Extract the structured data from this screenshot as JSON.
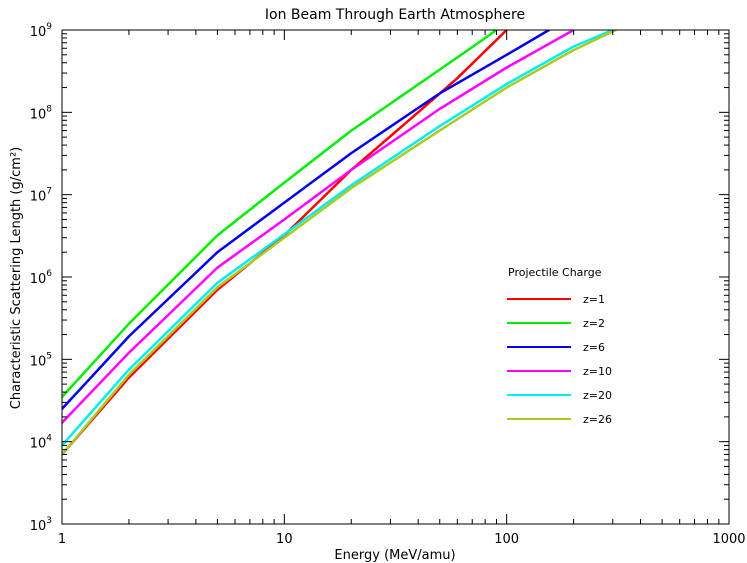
{
  "chart_data": {
    "type": "line",
    "title": "Ion Beam Through Earth Atmosphere",
    "xlabel": "Energy (MeV/amu)",
    "ylabel": "Characteristic Scattering Length (g/cm²)",
    "xscale": "log",
    "yscale": "log",
    "xlim": [
      1,
      1000
    ],
    "ylim": [
      1000,
      1000000000
    ],
    "x_ticks": [
      {
        "value": 1,
        "label": "1"
      },
      {
        "value": 10,
        "label": "10"
      },
      {
        "value": 100,
        "label": "100"
      },
      {
        "value": 1000,
        "label": "1000"
      }
    ],
    "y_ticks": [
      {
        "value": 1000,
        "base": "10",
        "exp": "3"
      },
      {
        "value": 10000,
        "base": "10",
        "exp": "4"
      },
      {
        "value": 100000,
        "base": "10",
        "exp": "5"
      },
      {
        "value": 1000000,
        "base": "10",
        "exp": "6"
      },
      {
        "value": 10000000,
        "base": "10",
        "exp": "7"
      },
      {
        "value": 100000000,
        "base": "10",
        "exp": "8"
      },
      {
        "value": 1000000000,
        "base": "10",
        "exp": "9"
      }
    ],
    "grid": false,
    "legend": {
      "title": "Projectile Charge",
      "position": "right"
    },
    "series": [
      {
        "name": "z=1",
        "color": "#ff0000",
        "x": [
          1,
          2,
          5,
          10,
          20,
          40,
          60,
          100
        ],
        "y": [
          7000,
          60000,
          700000,
          3200000,
          20000000,
          100000000,
          260000000,
          1000000000
        ]
      },
      {
        "name": "z=2",
        "color": "#00ee00",
        "x": [
          1,
          2,
          5,
          10,
          20,
          50,
          70,
          90
        ],
        "y": [
          35000,
          270000,
          3200000,
          14000000,
          60000000,
          330000000,
          620000000,
          1000000000
        ]
      },
      {
        "name": "z=6",
        "color": "#0000ee",
        "x": [
          1,
          2,
          5,
          10,
          20,
          50,
          100,
          155
        ],
        "y": [
          25000,
          190000,
          2000000,
          8000000,
          32000000,
          170000000,
          500000000,
          1000000000
        ]
      },
      {
        "name": "z=10",
        "color": "#ff00ff",
        "x": [
          1,
          2,
          5,
          10,
          20,
          50,
          100,
          200
        ],
        "y": [
          17000,
          120000,
          1300000,
          5000000,
          20000000,
          110000000,
          350000000,
          1000000000
        ]
      },
      {
        "name": "z=20",
        "color": "#00eeee",
        "x": [
          1,
          2,
          5,
          10,
          20,
          50,
          100,
          200,
          300
        ],
        "y": [
          9000,
          75000,
          850000,
          3300000,
          13000000,
          68000000,
          220000000,
          630000000,
          1000000000
        ]
      },
      {
        "name": "z=26",
        "color": "#aacc22",
        "x": [
          1,
          2,
          5,
          10,
          20,
          50,
          100,
          200,
          310
        ],
        "y": [
          7000,
          65000,
          750000,
          3000000,
          12000000,
          60000000,
          200000000,
          570000000,
          1000000000
        ]
      }
    ]
  }
}
